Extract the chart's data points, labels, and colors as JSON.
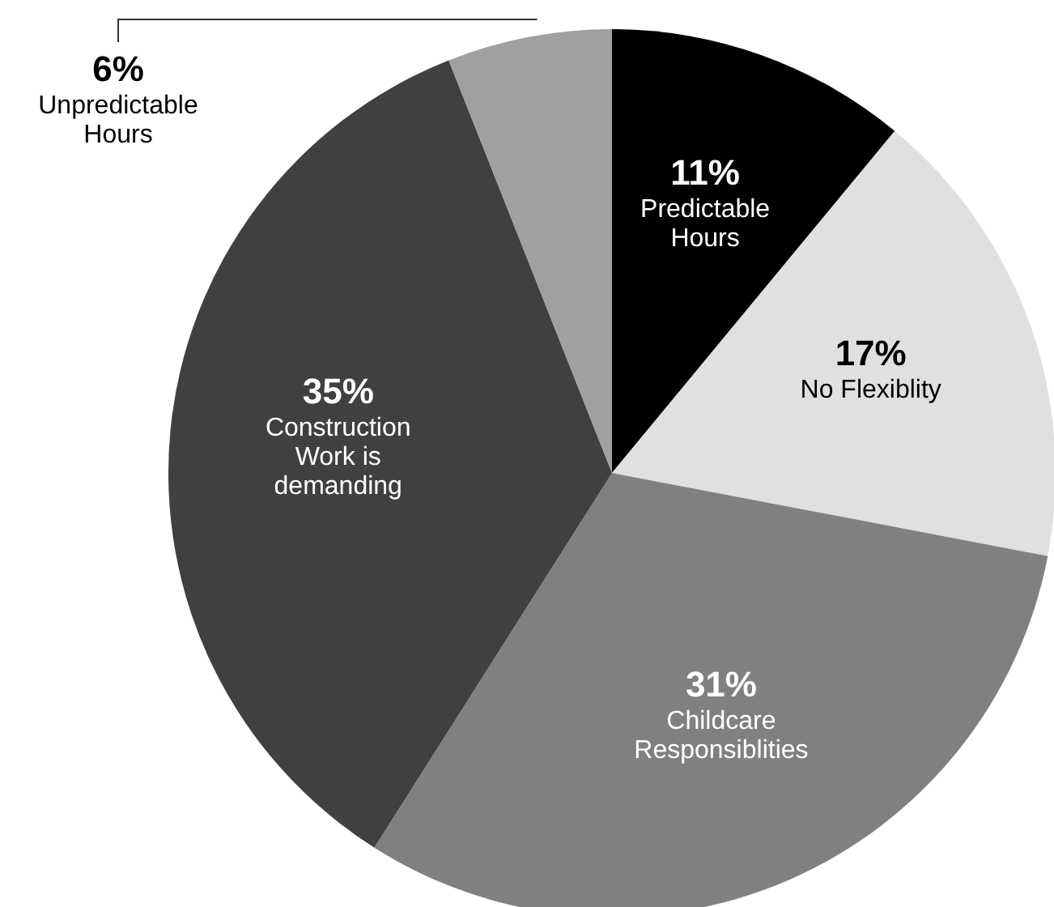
{
  "chart_data": {
    "type": "pie",
    "categories": [
      "Predictable Hours",
      "No Flexiblity",
      "Childcare Responsiblities",
      "Construction Work is demanding",
      "Unpredictable Hours"
    ],
    "values": [
      11,
      17,
      31,
      35,
      6
    ],
    "value_labels": [
      "11%",
      "17%",
      "31%",
      "35%",
      "6%"
    ],
    "colors": [
      "#000000",
      "#e0e0e0",
      "#808080",
      "#404040",
      "#a0a0a0"
    ]
  }
}
